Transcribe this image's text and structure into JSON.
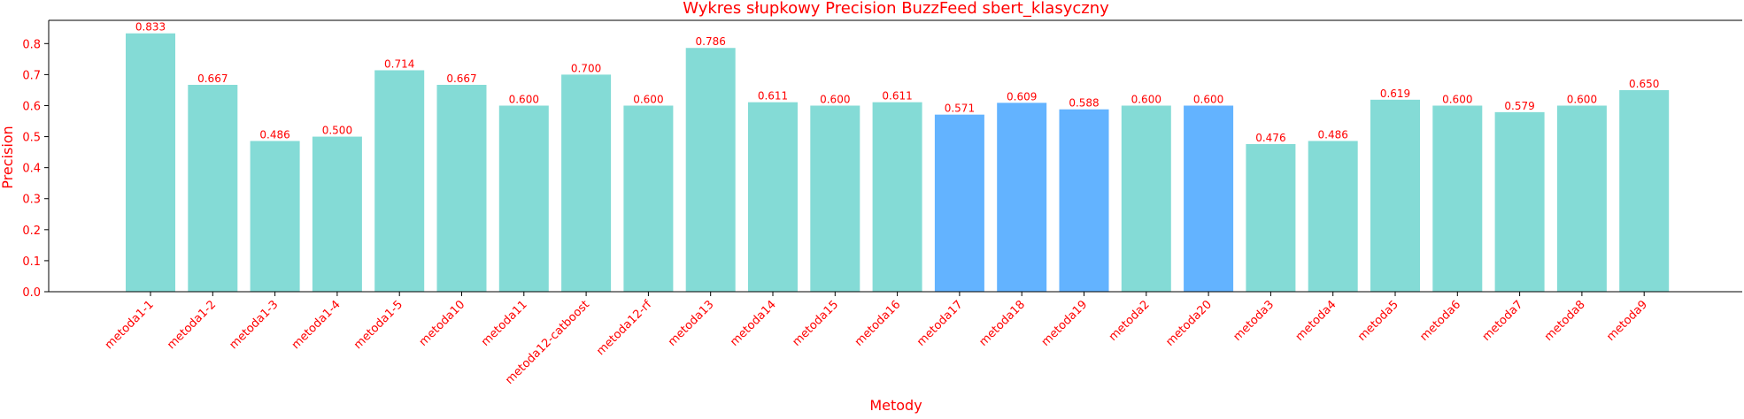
{
  "chart_data": {
    "type": "bar",
    "title": "Wykres słupkowy Precision BuzzFeed sbert_klasyczny",
    "xlabel": "Metody",
    "ylabel": "Precision",
    "ylim": [
      0,
      0.875
    ],
    "yticks": [
      "0.0",
      "0.1",
      "0.2",
      "0.3",
      "0.4",
      "0.5",
      "0.6",
      "0.7",
      "0.8"
    ],
    "categories": [
      "metoda1-1",
      "metoda1-2",
      "metoda1-3",
      "metoda1-4",
      "metoda1-5",
      "metoda10",
      "metoda11",
      "metoda12-catboost",
      "metoda12-rf",
      "metoda13",
      "metoda14",
      "metoda15",
      "metoda16",
      "metoda17",
      "metoda18",
      "metoda19",
      "metoda2",
      "metoda20",
      "metoda3",
      "metoda4",
      "metoda5",
      "metoda6",
      "metoda7",
      "metoda8",
      "metoda9"
    ],
    "values": [
      0.833,
      0.667,
      0.486,
      0.5,
      0.714,
      0.667,
      0.6,
      0.7,
      0.6,
      0.786,
      0.611,
      0.6,
      0.611,
      0.571,
      0.609,
      0.588,
      0.6,
      0.6,
      0.476,
      0.486,
      0.619,
      0.6,
      0.579,
      0.6,
      0.65
    ],
    "value_labels": [
      "0.833",
      "0.667",
      "0.486",
      "0.500",
      "0.714",
      "0.667",
      "0.600",
      "0.700",
      "0.600",
      "0.786",
      "0.611",
      "0.600",
      "0.611",
      "0.571",
      "0.609",
      "0.588",
      "0.600",
      "0.600",
      "0.476",
      "0.486",
      "0.619",
      "0.600",
      "0.579",
      "0.600",
      "0.650"
    ],
    "bar_colors": [
      "#84dbd6",
      "#84dbd6",
      "#84dbd6",
      "#84dbd6",
      "#84dbd6",
      "#84dbd6",
      "#84dbd6",
      "#84dbd6",
      "#84dbd6",
      "#84dbd6",
      "#84dbd6",
      "#84dbd6",
      "#84dbd6",
      "#63b3ff",
      "#63b3ff",
      "#63b3ff",
      "#84dbd6",
      "#63b3ff",
      "#84dbd6",
      "#84dbd6",
      "#84dbd6",
      "#84dbd6",
      "#84dbd6",
      "#84dbd6",
      "#84dbd6"
    ],
    "grid": false,
    "legend": "none",
    "text_color": "#ff0000",
    "axis_color": "#000000"
  }
}
